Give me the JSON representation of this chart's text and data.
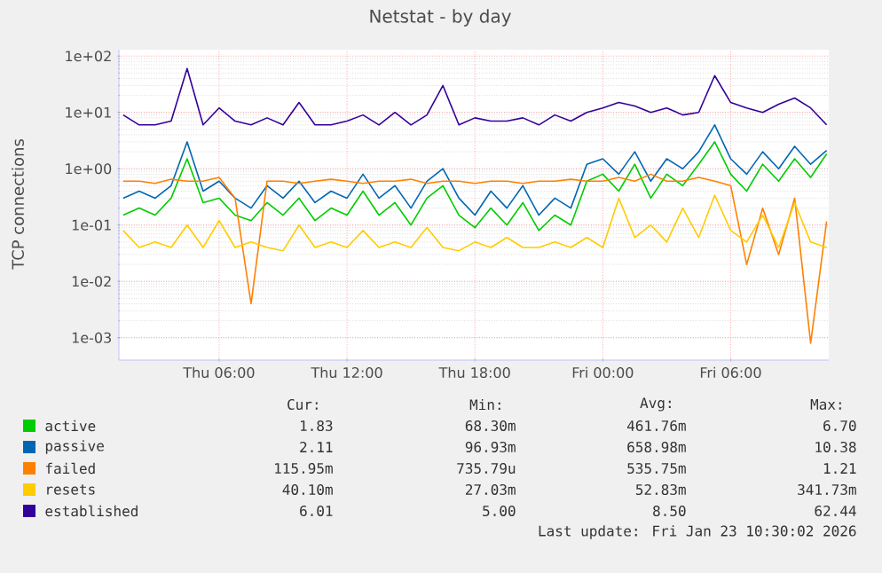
{
  "chart_data": {
    "type": "line",
    "title": "Netstat - by day",
    "ylabel": "TCP connections",
    "log": true,
    "grid": true,
    "legend": "bottom",
    "x": [
      "2026-01-22T01:30",
      "2026-01-22T02:15",
      "2026-01-22T03:00",
      "2026-01-22T03:45",
      "2026-01-22T04:30",
      "2026-01-22T05:15",
      "2026-01-22T06:00",
      "2026-01-22T06:45",
      "2026-01-22T07:30",
      "2026-01-22T08:15",
      "2026-01-22T09:00",
      "2026-01-22T09:45",
      "2026-01-22T10:30",
      "2026-01-22T11:15",
      "2026-01-22T12:00",
      "2026-01-22T12:45",
      "2026-01-22T13:30",
      "2026-01-22T14:15",
      "2026-01-22T15:00",
      "2026-01-22T15:45",
      "2026-01-22T16:30",
      "2026-01-22T17:15",
      "2026-01-22T18:00",
      "2026-01-22T18:45",
      "2026-01-22T19:30",
      "2026-01-22T20:15",
      "2026-01-22T21:00",
      "2026-01-22T21:45",
      "2026-01-22T22:30",
      "2026-01-22T23:15",
      "2026-01-23T00:00",
      "2026-01-23T00:45",
      "2026-01-23T01:30",
      "2026-01-23T02:15",
      "2026-01-23T03:00",
      "2026-01-23T03:45",
      "2026-01-23T04:30",
      "2026-01-23T05:15",
      "2026-01-23T06:00",
      "2026-01-23T06:45",
      "2026-01-23T07:30",
      "2026-01-23T08:15",
      "2026-01-23T09:00",
      "2026-01-23T09:45",
      "2026-01-23T10:30"
    ],
    "xlim": [
      "2026-01-22T01:18",
      "2026-01-23T10:36"
    ],
    "xticks": [
      {
        "value": "2026-01-22T06:00",
        "label": "Thu 06:00"
      },
      {
        "value": "2026-01-22T12:00",
        "label": "Thu 12:00"
      },
      {
        "value": "2026-01-22T18:00",
        "label": "Thu 18:00"
      },
      {
        "value": "2026-01-23T00:00",
        "label": "Fri 00:00"
      },
      {
        "value": "2026-01-23T06:00",
        "label": "Fri 06:00"
      }
    ],
    "ylim": [
      0.0004,
      130
    ],
    "yticks": [
      {
        "value": 0.001,
        "label": "1e-03"
      },
      {
        "value": 0.01,
        "label": "1e-02"
      },
      {
        "value": 0.1,
        "label": "1e-01"
      },
      {
        "value": 1,
        "label": "1e+00"
      },
      {
        "value": 10,
        "label": "1e+01"
      },
      {
        "value": 100,
        "label": "1e+02"
      }
    ],
    "series": [
      {
        "name": "active",
        "color": "#00cc00",
        "values": [
          0.15,
          0.2,
          0.15,
          0.3,
          1.5,
          0.25,
          0.3,
          0.15,
          0.12,
          0.25,
          0.15,
          0.3,
          0.12,
          0.2,
          0.15,
          0.4,
          0.15,
          0.25,
          0.1,
          0.3,
          0.5,
          0.15,
          0.09,
          0.2,
          0.1,
          0.25,
          0.08,
          0.15,
          0.1,
          0.6,
          0.8,
          0.4,
          1.2,
          0.3,
          0.8,
          0.5,
          1.2,
          3,
          0.8,
          0.4,
          1.2,
          0.6,
          1.5,
          0.7,
          1.83
        ]
      },
      {
        "name": "passive",
        "color": "#0066b3",
        "values": [
          0.3,
          0.4,
          0.3,
          0.5,
          3,
          0.4,
          0.6,
          0.3,
          0.2,
          0.5,
          0.3,
          0.6,
          0.25,
          0.4,
          0.3,
          0.8,
          0.3,
          0.5,
          0.2,
          0.6,
          1.0,
          0.3,
          0.15,
          0.4,
          0.2,
          0.5,
          0.15,
          0.3,
          0.2,
          1.2,
          1.5,
          0.8,
          2,
          0.6,
          1.5,
          1.0,
          2,
          6,
          1.5,
          0.8,
          2,
          1,
          2.5,
          1.2,
          2.11
        ]
      },
      {
        "name": "failed",
        "color": "#ff8000",
        "values": [
          0.6,
          0.6,
          0.55,
          0.65,
          0.6,
          0.6,
          0.7,
          0.3,
          0.004,
          0.6,
          0.6,
          0.55,
          0.6,
          0.65,
          0.6,
          0.55,
          0.6,
          0.6,
          0.65,
          0.55,
          0.6,
          0.6,
          0.55,
          0.6,
          0.6,
          0.55,
          0.6,
          0.6,
          0.65,
          0.6,
          0.6,
          0.7,
          0.6,
          0.8,
          0.6,
          0.6,
          0.7,
          0.6,
          0.5,
          0.02,
          0.2,
          0.03,
          0.3,
          0.0008,
          0.116
        ]
      },
      {
        "name": "resets",
        "color": "#ffcc00",
        "values": [
          0.08,
          0.04,
          0.05,
          0.04,
          0.1,
          0.04,
          0.12,
          0.04,
          0.05,
          0.04,
          0.035,
          0.1,
          0.04,
          0.05,
          0.04,
          0.08,
          0.04,
          0.05,
          0.04,
          0.09,
          0.04,
          0.035,
          0.05,
          0.04,
          0.06,
          0.04,
          0.04,
          0.05,
          0.04,
          0.06,
          0.04,
          0.3,
          0.06,
          0.1,
          0.05,
          0.2,
          0.06,
          0.34,
          0.08,
          0.05,
          0.15,
          0.04,
          0.25,
          0.05,
          0.04
        ]
      },
      {
        "name": "established",
        "color": "#330099",
        "values": [
          9,
          6,
          6,
          7,
          60,
          6,
          12,
          7,
          6,
          8,
          6,
          15,
          6,
          6,
          7,
          9,
          6,
          10,
          6,
          9,
          30,
          6,
          8,
          7,
          7,
          8,
          6,
          9,
          7,
          10,
          12,
          15,
          13,
          10,
          12,
          9,
          10,
          45,
          15,
          12,
          10,
          14,
          18,
          12,
          6
        ]
      }
    ],
    "annotations": [
      "Cur:",
      "Min:",
      "Avg:",
      "Max:",
      "1.83",
      "68.30m",
      "461.76m",
      "6.70",
      "2.11",
      "96.93m",
      "658.98m",
      "10.38",
      "115.95m",
      "735.79u",
      "535.75m",
      "1.21",
      "40.10m",
      "27.03m",
      "52.83m",
      "341.73m",
      "6.01",
      "5.00",
      "8.50",
      "62.44",
      "Last update: Fri Jan 23 10:30:02 2026"
    ]
  }
}
